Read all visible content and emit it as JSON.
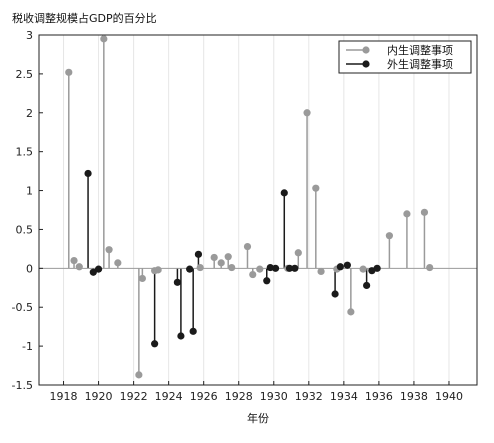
{
  "chart_data": {
    "type": "stem",
    "title": "税收调整规模占GDP的百分比",
    "xlabel": "年份",
    "ylabel": "",
    "xlim": [
      1916.6,
      1941.6
    ],
    "ylim": [
      -1.5,
      3
    ],
    "xticks": [
      1918,
      1920,
      1922,
      1924,
      1926,
      1928,
      1930,
      1932,
      1934,
      1936,
      1938,
      1940
    ],
    "yticks": [
      -1.5,
      -1,
      -0.5,
      0,
      0.5,
      1,
      1.5,
      2,
      2.5,
      3
    ],
    "grid": "vertical",
    "legend": "top-right",
    "series": [
      {
        "name": "内生调整事项",
        "color": "#9a9a9a",
        "x": [
          1918.3,
          1918.6,
          1918.9,
          1920.3,
          1920.6,
          1921.1,
          1922.3,
          1922.5,
          1923.2,
          1923.4,
          1925.8,
          1926.6,
          1927.0,
          1927.4,
          1927.6,
          1928.5,
          1928.8,
          1929.2,
          1930.8,
          1931.4,
          1931.9,
          1932.4,
          1932.7,
          1933.6,
          1934.4,
          1935.1,
          1936.6,
          1937.6,
          1938.6,
          1938.9
        ],
        "y": [
          2.52,
          0.1,
          0.02,
          2.95,
          0.24,
          0.07,
          -1.37,
          -0.13,
          -0.03,
          -0.02,
          0.01,
          0.14,
          0.07,
          0.15,
          0.01,
          0.28,
          -0.08,
          -0.01,
          0.0,
          0.2,
          2.0,
          1.03,
          -0.04,
          -0.01,
          -0.56,
          -0.01,
          0.42,
          0.7,
          0.72,
          0.01
        ]
      },
      {
        "name": "外生调整事项",
        "color": "#1a1a1a",
        "x": [
          1919.4,
          1919.7,
          1920.0,
          1923.2,
          1924.5,
          1924.7,
          1925.2,
          1925.4,
          1925.7,
          1929.6,
          1929.8,
          1930.1,
          1930.6,
          1930.9,
          1931.2,
          1933.5,
          1933.8,
          1934.2,
          1935.3,
          1935.6,
          1935.9
        ],
        "y": [
          1.22,
          -0.05,
          -0.01,
          -0.97,
          -0.18,
          -0.87,
          -0.01,
          -0.81,
          0.18,
          -0.16,
          0.01,
          0.0,
          0.97,
          0.0,
          0.0,
          -0.33,
          0.02,
          0.04,
          -0.22,
          -0.03,
          0.0
        ]
      }
    ]
  }
}
